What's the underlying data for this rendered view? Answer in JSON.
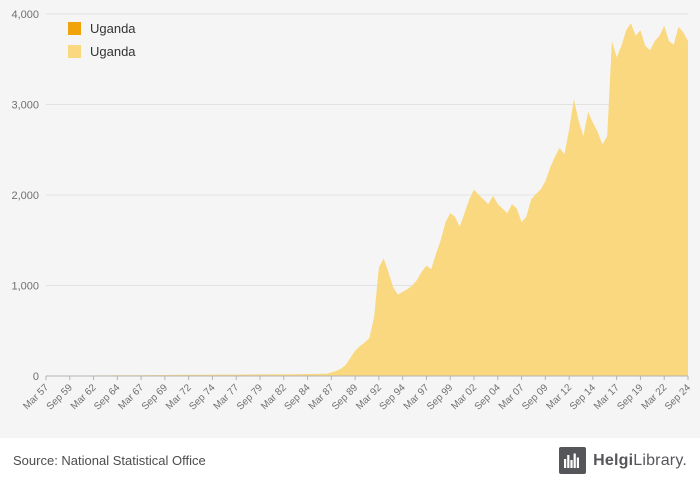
{
  "page": {
    "chart_background": "#f5f5f5",
    "footer_background": "#ffffff"
  },
  "legend": {
    "items": [
      {
        "label": "Uganda",
        "color": "#F0A30A"
      },
      {
        "label": "Uganda",
        "color": "#FAD87F"
      }
    ]
  },
  "footer": {
    "source_text": "Source: National Statistical Office",
    "brand": {
      "name_bold": "Helgi",
      "name_rest": "Library.",
      "icon": "city-skyline-icon",
      "badge_color": "#55565A",
      "text_color": "#55565A"
    }
  },
  "chart_data": {
    "type": "area",
    "title": "",
    "series_name": "Uganda",
    "frequency": "semiannual",
    "x_start": "Mar 1957",
    "x_end": "Sep 2024",
    "x_tick_every": 5,
    "x_tick_labels": [
      "Mar 57",
      "Sep 59",
      "Mar 62",
      "Sep 64",
      "Mar 67",
      "Sep 69",
      "Mar 72",
      "Sep 74",
      "Mar 77",
      "Sep 79",
      "Mar 82",
      "Sep 84",
      "Mar 87",
      "Sep 89",
      "Mar 92",
      "Sep 94",
      "Mar 97",
      "Sep 99",
      "Mar 02",
      "Sep 04",
      "Mar 07",
      "Sep 09",
      "Mar 12",
      "Sep 14",
      "Mar 17",
      "Sep 19",
      "Mar 22",
      "Sep 24"
    ],
    "y_tick_labels": [
      "0",
      "1,000",
      "2,000",
      "3,000",
      "4,000"
    ],
    "ylim": [
      0,
      4000
    ],
    "grid": true,
    "legend_position": "top-left",
    "area_color": "#FAD87F",
    "grid_color": "#e2e2e2",
    "axis_color": "#b3b3b3",
    "tick_text_color": "#707070",
    "values": [
      3,
      3,
      4,
      4,
      4,
      5,
      5,
      5,
      6,
      6,
      6,
      7,
      7,
      7,
      8,
      8,
      8,
      9,
      9,
      9,
      10,
      10,
      10,
      11,
      11,
      11,
      12,
      12,
      12,
      13,
      13,
      13,
      14,
      14,
      14,
      15,
      15,
      15,
      16,
      16,
      16,
      17,
      17,
      17,
      18,
      18,
      18,
      19,
      19,
      19,
      20,
      20,
      20,
      21,
      21,
      22,
      22,
      23,
      24,
      25,
      40,
      55,
      80,
      120,
      200,
      280,
      330,
      370,
      420,
      650,
      1200,
      1300,
      1150,
      980,
      900,
      930,
      960,
      1000,
      1060,
      1150,
      1220,
      1180,
      1350,
      1500,
      1700,
      1800,
      1760,
      1650,
      1800,
      1950,
      2060,
      2000,
      1950,
      1900,
      1990,
      1900,
      1850,
      1800,
      1900,
      1850,
      1700,
      1760,
      1950,
      2010,
      2060,
      2150,
      2300,
      2420,
      2520,
      2450,
      2720,
      3060,
      2820,
      2650,
      2920,
      2800,
      2700,
      2560,
      2650,
      3700,
      3520,
      3650,
      3820,
      3900,
      3760,
      3820,
      3650,
      3600,
      3700,
      3760,
      3870,
      3700,
      3660,
      3860,
      3800,
      3700
    ]
  }
}
